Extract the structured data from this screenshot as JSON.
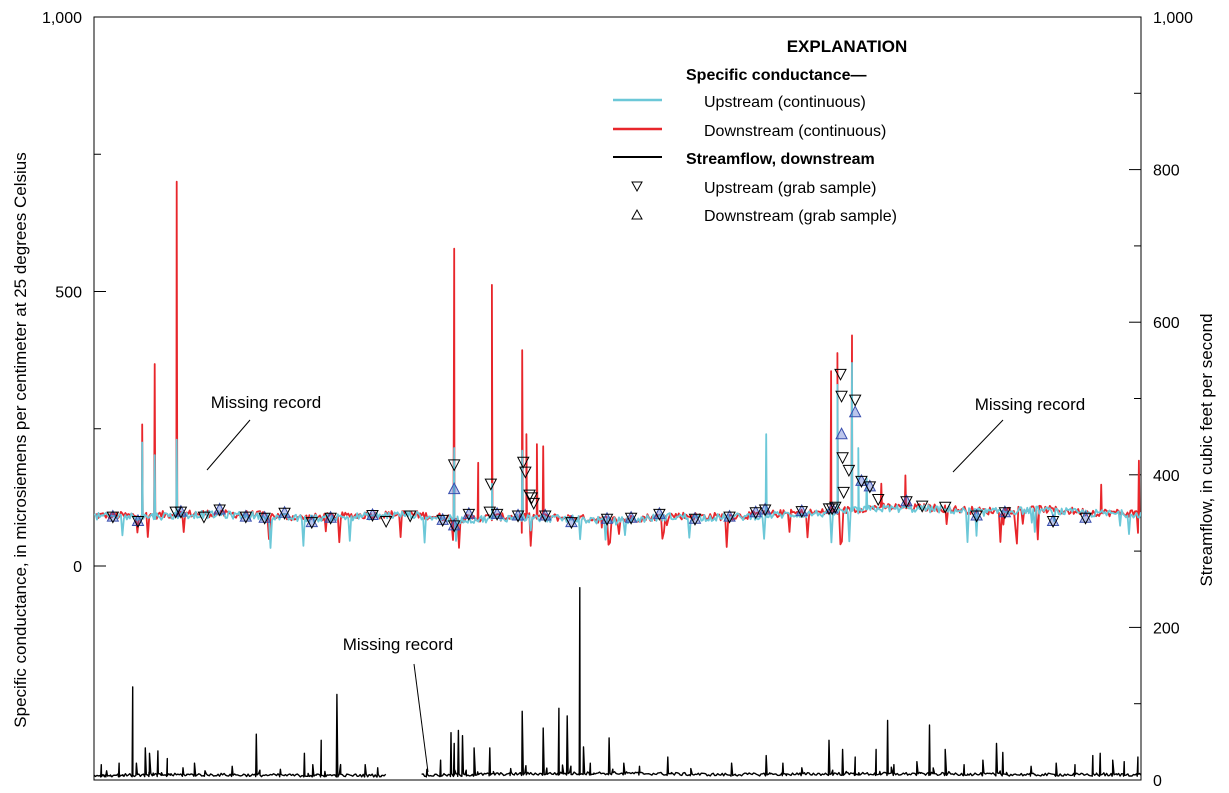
{
  "chart_data": {
    "type": "line",
    "left_axis": {
      "label": "Specific conductance, in microsiemens per centimeter at 25 degrees Celsius",
      "ticks": [
        {
          "v": 1000,
          "label": "1,000"
        },
        {
          "v": 500,
          "label": "500"
        },
        {
          "v": 0,
          "label": "0"
        }
      ],
      "ylim": [
        0,
        1000
      ]
    },
    "right_axis": {
      "label": "Streamflow, in cubic  feet per second",
      "ticks": [
        {
          "v": 1000,
          "label": "1,000"
        },
        {
          "v": 800,
          "label": "800"
        },
        {
          "v": 600,
          "label": "600"
        },
        {
          "v": 400,
          "label": "400"
        },
        {
          "v": 200,
          "label": "200"
        },
        {
          "v": 0,
          "label": "0"
        }
      ],
      "ylim": [
        0,
        1000
      ]
    },
    "x_axis": {
      "label": "",
      "xlim": [
        0,
        100
      ]
    },
    "grid": false,
    "legend": {
      "position": "top-right",
      "title": "EXPLANATION",
      "group_header": "Specific conductance—",
      "entries": [
        {
          "label": "Upstream (continuous)",
          "kind": "line",
          "color": "#6cc8d8"
        },
        {
          "label": "Downstream (continuous)",
          "kind": "line",
          "color": "#e8262b"
        },
        {
          "label": "Streamflow, downstream",
          "kind": "line",
          "color": "#000000",
          "bold": true
        },
        {
          "label": "Upstream (grab sample)",
          "kind": "triangle-down"
        },
        {
          "label": "Downstream (grab sample)",
          "kind": "triangle-up"
        }
      ]
    },
    "annotations": [
      {
        "text": "Missing record",
        "x": 13,
        "y": 260,
        "axis": "left"
      },
      {
        "text": "Missing record",
        "x": 82.5,
        "y": 258,
        "axis": "left"
      },
      {
        "text": "Missing record",
        "x": 31.3,
        "y": -145,
        "axis": "left"
      }
    ],
    "series": [
      {
        "name": "Downstream (continuous)",
        "axis": "left",
        "color": "#e8262b",
        "baseline": [
          [
            0,
            92
          ],
          [
            5,
            92
          ],
          [
            10,
            96
          ],
          [
            15,
            94
          ],
          [
            20,
            88
          ],
          [
            25,
            92
          ],
          [
            30,
            95
          ],
          [
            35,
            86
          ],
          [
            40,
            90
          ],
          [
            45,
            88
          ],
          [
            50,
            84
          ],
          [
            55,
            92
          ],
          [
            60,
            90
          ],
          [
            65,
            95
          ],
          [
            70,
            98
          ],
          [
            75,
            108
          ],
          [
            80,
            106
          ],
          [
            85,
            100
          ],
          [
            90,
            104
          ],
          [
            95,
            98
          ],
          [
            100,
            96
          ]
        ],
        "spikes": [
          [
            4.6,
            258
          ],
          [
            5.8,
            368
          ],
          [
            7.9,
            700
          ],
          [
            34.4,
            578
          ],
          [
            36.7,
            188
          ],
          [
            38.0,
            512
          ],
          [
            40.9,
            393
          ],
          [
            41.3,
            240
          ],
          [
            42.3,
            222
          ],
          [
            42.9,
            218
          ],
          [
            48.5,
            70
          ],
          [
            57.1,
            92
          ],
          [
            70.4,
            355
          ],
          [
            71.0,
            388
          ],
          [
            72.4,
            420
          ],
          [
            75.2,
            150
          ],
          [
            77.5,
            165
          ],
          [
            96.2,
            148
          ],
          [
            99.8,
            192
          ]
        ]
      },
      {
        "name": "Upstream (continuous)",
        "axis": "left",
        "color": "#6cc8d8",
        "baseline": [
          [
            0,
            90
          ],
          [
            5,
            90
          ],
          [
            10,
            94
          ],
          [
            15,
            92
          ],
          [
            20,
            86
          ],
          [
            25,
            90
          ],
          [
            30,
            94
          ],
          [
            35,
            84
          ],
          [
            40,
            88
          ],
          [
            45,
            86
          ],
          [
            50,
            82
          ],
          [
            55,
            90
          ],
          [
            60,
            88
          ],
          [
            65,
            93
          ],
          [
            70,
            96
          ],
          [
            75,
            105
          ],
          [
            80,
            104
          ],
          [
            85,
            98
          ],
          [
            90,
            102
          ],
          [
            95,
            96
          ],
          [
            100,
            95
          ]
        ],
        "spikes": [
          [
            4.6,
            225
          ],
          [
            5.8,
            202
          ],
          [
            7.9,
            230
          ],
          [
            34.4,
            215
          ],
          [
            38.0,
            150
          ],
          [
            40.9,
            210
          ],
          [
            64.2,
            240
          ],
          [
            71.0,
            330
          ],
          [
            72.4,
            370
          ],
          [
            73.0,
            215
          ],
          [
            73.8,
            160
          ]
        ]
      },
      {
        "name": "Streamflow, downstream",
        "axis": "right",
        "color": "#000000",
        "gaps": [
          [
            28.0,
            31.2
          ]
        ],
        "baseline": [
          [
            0,
            4
          ],
          [
            10,
            5
          ],
          [
            20,
            4
          ],
          [
            27.8,
            4
          ],
          [
            31.4,
            4
          ],
          [
            40,
            6
          ],
          [
            50,
            7
          ],
          [
            60,
            5
          ],
          [
            70,
            6
          ],
          [
            80,
            6
          ],
          [
            90,
            5
          ],
          [
            100,
            5
          ]
        ],
        "spikes": [
          [
            0.7,
            20
          ],
          [
            1.2,
            12
          ],
          [
            2.4,
            22
          ],
          [
            3.7,
            122
          ],
          [
            4.9,
            42
          ],
          [
            5.3,
            35
          ],
          [
            6.1,
            38
          ],
          [
            7.0,
            28
          ],
          [
            8.5,
            16
          ],
          [
            9.6,
            22
          ],
          [
            10.6,
            12
          ],
          [
            13.2,
            18
          ],
          [
            15.5,
            60
          ],
          [
            17.8,
            14
          ],
          [
            20.1,
            35
          ],
          [
            20.9,
            20
          ],
          [
            21.7,
            52
          ],
          [
            23.2,
            112
          ],
          [
            25.9,
            20
          ],
          [
            27.1,
            16
          ],
          [
            31.8,
            14
          ],
          [
            33.1,
            26
          ],
          [
            34.1,
            62
          ],
          [
            34.4,
            48
          ],
          [
            34.8,
            65
          ],
          [
            35.2,
            58
          ],
          [
            36.3,
            42
          ],
          [
            37.8,
            42
          ],
          [
            39.8,
            15
          ],
          [
            40.9,
            90
          ],
          [
            42.9,
            68
          ],
          [
            44.4,
            94
          ],
          [
            45.2,
            84
          ],
          [
            46.4,
            252
          ],
          [
            47.4,
            22
          ],
          [
            49.2,
            55
          ],
          [
            50.6,
            22
          ],
          [
            52.1,
            18
          ],
          [
            54.8,
            30
          ],
          [
            57.0,
            15
          ],
          [
            60.9,
            22
          ],
          [
            64.2,
            32
          ],
          [
            65.8,
            22
          ],
          [
            67.6,
            16
          ],
          [
            70.2,
            52
          ],
          [
            71.5,
            40
          ],
          [
            72.7,
            30
          ],
          [
            74.7,
            40
          ],
          [
            75.8,
            78
          ],
          [
            76.4,
            20
          ],
          [
            78.6,
            24
          ],
          [
            79.8,
            72
          ],
          [
            81.3,
            40
          ],
          [
            83.1,
            20
          ],
          [
            84.9,
            26
          ],
          [
            86.2,
            48
          ],
          [
            86.8,
            36
          ],
          [
            89.5,
            18
          ],
          [
            91.9,
            22
          ],
          [
            93.7,
            20
          ],
          [
            95.4,
            32
          ],
          [
            96.1,
            35
          ],
          [
            97.3,
            26
          ],
          [
            98.4,
            24
          ],
          [
            99.7,
            30
          ]
        ]
      }
    ],
    "grab_samples": {
      "upstream": {
        "marker": "triangle-down",
        "axis": "left",
        "points": [
          [
            1.8,
            90
          ],
          [
            4.2,
            82
          ],
          [
            7.8,
            99
          ],
          [
            8.3,
            99
          ],
          [
            10.5,
            90
          ],
          [
            12.0,
            103
          ],
          [
            14.5,
            90
          ],
          [
            16.3,
            88
          ],
          [
            18.2,
            97
          ],
          [
            20.8,
            80
          ],
          [
            22.6,
            88
          ],
          [
            26.6,
            93
          ],
          [
            27.9,
            82
          ],
          [
            30.2,
            92
          ],
          [
            33.3,
            84
          ],
          [
            34.4,
            185
          ],
          [
            34.4,
            74
          ],
          [
            35.8,
            95
          ],
          [
            37.8,
            99
          ],
          [
            37.9,
            150
          ],
          [
            38.5,
            95
          ],
          [
            40.5,
            92
          ],
          [
            41.0,
            190
          ],
          [
            41.2,
            172
          ],
          [
            41.6,
            130
          ],
          [
            41.8,
            125
          ],
          [
            42.0,
            115
          ],
          [
            43.1,
            92
          ],
          [
            45.6,
            80
          ],
          [
            49.0,
            86
          ],
          [
            51.3,
            88
          ],
          [
            54.0,
            95
          ],
          [
            57.4,
            86
          ],
          [
            60.7,
            90
          ],
          [
            63.2,
            98
          ],
          [
            64.1,
            103
          ],
          [
            67.6,
            100
          ],
          [
            70.2,
            105
          ],
          [
            70.5,
            105
          ],
          [
            70.8,
            108
          ],
          [
            71.3,
            350
          ],
          [
            71.4,
            310
          ],
          [
            71.5,
            198
          ],
          [
            71.6,
            135
          ],
          [
            72.1,
            175
          ],
          [
            72.7,
            303
          ],
          [
            73.3,
            155
          ],
          [
            74.1,
            145
          ],
          [
            74.9,
            122
          ],
          [
            77.6,
            118
          ],
          [
            79.1,
            110
          ],
          [
            81.3,
            108
          ],
          [
            84.3,
            92
          ],
          [
            87.0,
            98
          ],
          [
            91.6,
            82
          ],
          [
            94.7,
            88
          ]
        ]
      },
      "downstream": {
        "marker": "triangle-up",
        "axis": "left",
        "points": [
          [
            1.8,
            90
          ],
          [
            4.2,
            82
          ],
          [
            8.3,
            99
          ],
          [
            12.0,
            103
          ],
          [
            14.5,
            90
          ],
          [
            16.3,
            88
          ],
          [
            18.2,
            97
          ],
          [
            20.8,
            80
          ],
          [
            22.6,
            88
          ],
          [
            26.6,
            93
          ],
          [
            33.3,
            84
          ],
          [
            34.4,
            140
          ],
          [
            34.4,
            74
          ],
          [
            35.8,
            95
          ],
          [
            38.5,
            95
          ],
          [
            40.5,
            92
          ],
          [
            43.1,
            92
          ],
          [
            45.6,
            80
          ],
          [
            49.0,
            86
          ],
          [
            51.3,
            88
          ],
          [
            54.0,
            95
          ],
          [
            57.4,
            86
          ],
          [
            60.7,
            90
          ],
          [
            63.2,
            98
          ],
          [
            64.1,
            103
          ],
          [
            67.6,
            100
          ],
          [
            70.5,
            105
          ],
          [
            71.4,
            240
          ],
          [
            72.7,
            280
          ],
          [
            73.3,
            155
          ],
          [
            74.1,
            145
          ],
          [
            77.6,
            118
          ],
          [
            84.3,
            92
          ],
          [
            87.0,
            98
          ],
          [
            91.6,
            82
          ],
          [
            94.7,
            88
          ]
        ]
      }
    }
  }
}
